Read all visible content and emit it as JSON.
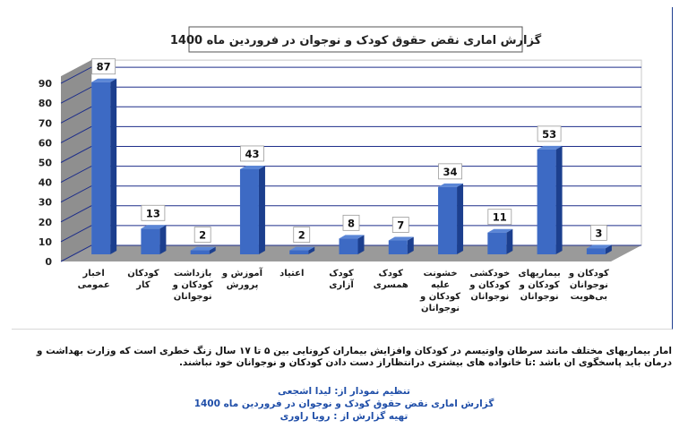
{
  "chart_data": {
    "type": "bar",
    "title": "گزارش اماری نقض حقوق کودک و نوجوان در فروردین ماه 1400",
    "categories": [
      "اخبار عمومی",
      "کودکان کار",
      "بازداشت کودکان و نوجوانان",
      "آموزش و پرورش",
      "اعتیاد",
      "کودک آزاری",
      "کودک همسری",
      "خشونت علیه کودکان و نوجوانان",
      "خودکشی کودکان و نوجوانان",
      "بیماریهای کودکان و نوجوانان",
      "کودکان و نوجوانان بی‌هویت"
    ],
    "values": [
      87,
      13,
      2,
      43,
      2,
      8,
      7,
      34,
      11,
      53,
      3
    ],
    "data_labels": [
      "87",
      "13",
      "2",
      "43",
      "2",
      "8",
      "7",
      "34",
      "11",
      "53",
      "3"
    ],
    "yticks": [
      "0",
      "10",
      "20",
      "30",
      "40",
      "50",
      "60",
      "70",
      "80",
      "90"
    ],
    "ylim": [
      0,
      90
    ],
    "grid": true,
    "colors": {
      "bar_front": "#3d6ac4",
      "bar_side": "#1c3f8e",
      "bar_top": "#5b86d6",
      "wall": "#8f8f8f",
      "floor": "#9a9a9a",
      "gridline": "#1f2f8a",
      "label_box": "#ffffff",
      "title_text": "#222222"
    }
  },
  "caption": "امار بیماریهای مختلف مانند سرطان واوتیسم در کودکان وافزایش بیماران کرونایی بین ۵ تا ۱۷ سال زنگ خطری است که وزارت بهداشت و درمان باید پاسخگوی ان باشد :تا خانواده های بیشتری درانتظاراز دست دادن کودکان و نوجوانان خود نباشند.",
  "credits": {
    "author": "تنظیم نمودار از: لیدا اشجعی",
    "report_title": "گزارش اماری نقض حقوق کودک و نوجوان در فروردین ماه 1400",
    "reporter": "تهیه گزارش از : رویا راوری"
  }
}
